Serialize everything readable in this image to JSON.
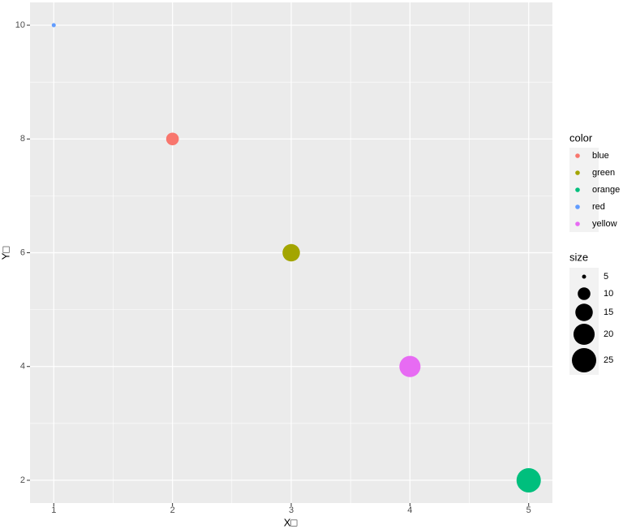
{
  "chart_data": {
    "type": "scatter",
    "x": [
      1,
      2,
      3,
      4,
      5
    ],
    "y": [
      10,
      8,
      6,
      4,
      2
    ],
    "size": [
      5,
      10,
      15,
      20,
      25
    ],
    "color_group": [
      "red",
      "blue",
      "green",
      "yellow",
      "orange"
    ],
    "xlabel": "X□",
    "ylabel": "Y□",
    "xlim": [
      0.8,
      5.2
    ],
    "ylim": [
      1.6,
      10.4
    ],
    "xticks": [
      1,
      2,
      3,
      4,
      5
    ],
    "yticks": [
      2,
      4,
      6,
      8,
      10
    ],
    "grid": true,
    "color_legend": {
      "title": "color",
      "entries": [
        {
          "name": "blue",
          "color": "#F8766D"
        },
        {
          "name": "green",
          "color": "#A3A500"
        },
        {
          "name": "orange",
          "color": "#00BF7D"
        },
        {
          "name": "red",
          "color": "#619CFF"
        },
        {
          "name": "yellow",
          "color": "#E76BF3"
        }
      ]
    },
    "size_legend": {
      "title": "size",
      "values": [
        5,
        10,
        15,
        20,
        25
      ]
    }
  }
}
